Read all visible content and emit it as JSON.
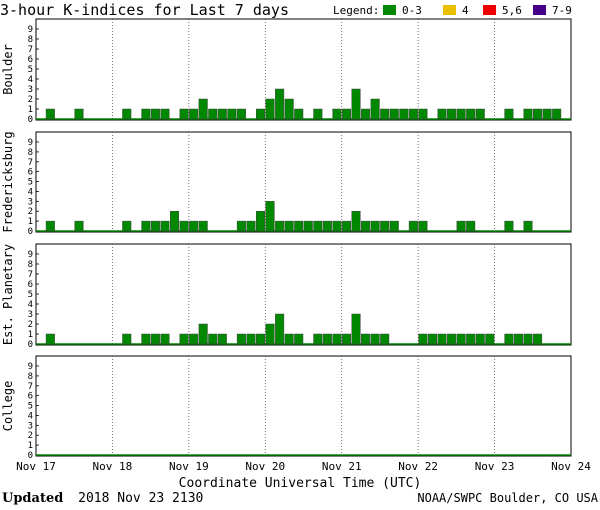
{
  "chart_data": {
    "type": "bar",
    "title": "3-hour K-indices for Last 7 days",
    "legend": {
      "label": "Legend:",
      "items": [
        {
          "label": "0-3",
          "color": "#008800"
        },
        {
          "label": "4",
          "color": "#e8c000"
        },
        {
          "label": "5,6",
          "color": "#ee0000"
        },
        {
          "label": "7-9",
          "color": "#440088"
        }
      ]
    },
    "xlabel": "Coordinate Universal Time (UTC)",
    "x_ticks": [
      "Nov 17",
      "Nov 18",
      "Nov 19",
      "Nov 20",
      "Nov 21",
      "Nov 22",
      "Nov 23",
      "Nov 24"
    ],
    "ylim": [
      0,
      9
    ],
    "y_ticks": [
      "0",
      "1",
      "2",
      "3",
      "4",
      "5",
      "6",
      "7",
      "8",
      "9"
    ],
    "grid": true,
    "bar_color": "#008800",
    "series": [
      {
        "name": "Boulder",
        "values": [
          0,
          1,
          0,
          0,
          1,
          0,
          0,
          0,
          0,
          1,
          0,
          1,
          1,
          1,
          0,
          1,
          1,
          2,
          1,
          1,
          1,
          1,
          0,
          1,
          2,
          3,
          2,
          1,
          0,
          1,
          0,
          1,
          1,
          3,
          1,
          2,
          1,
          1,
          1,
          1,
          1,
          0,
          1,
          1,
          1,
          1,
          1,
          0,
          0,
          1,
          0,
          1,
          1,
          1,
          1,
          0
        ]
      },
      {
        "name": "Fredericksburg",
        "values": [
          0,
          1,
          0,
          0,
          1,
          0,
          0,
          0,
          0,
          1,
          0,
          1,
          1,
          1,
          2,
          1,
          1,
          1,
          0,
          0,
          0,
          1,
          1,
          2,
          3,
          1,
          1,
          1,
          1,
          1,
          1,
          1,
          1,
          2,
          1,
          1,
          1,
          1,
          0,
          1,
          1,
          0,
          0,
          0,
          1,
          1,
          0,
          0,
          0,
          1,
          0,
          1,
          0,
          0,
          0,
          0
        ]
      },
      {
        "name": "Est. Planetary",
        "values": [
          0,
          1,
          0,
          0,
          0,
          0,
          0,
          0,
          0,
          1,
          0,
          1,
          1,
          1,
          0,
          1,
          1,
          2,
          1,
          1,
          0,
          1,
          1,
          1,
          2,
          3,
          1,
          1,
          0,
          1,
          1,
          1,
          1,
          3,
          1,
          1,
          1,
          0,
          0,
          0,
          1,
          1,
          1,
          1,
          1,
          1,
          1,
          1,
          0,
          1,
          1,
          1,
          1,
          0,
          0,
          0
        ]
      },
      {
        "name": "College",
        "values": [
          0,
          0,
          0,
          0,
          0,
          0,
          0,
          0,
          0,
          0,
          0,
          0,
          0,
          0,
          0,
          0,
          0,
          0,
          0,
          0,
          0,
          0,
          0,
          0,
          0,
          0,
          0,
          0,
          0,
          0,
          0,
          0,
          0,
          0,
          0,
          0,
          0,
          0,
          0,
          0,
          0,
          0,
          0,
          0,
          0,
          0,
          0,
          0,
          0,
          0,
          0,
          0,
          0,
          0,
          0,
          0
        ]
      }
    ]
  },
  "footer": {
    "updated_label": "Updated",
    "updated_value": "2018 Nov 23 2130",
    "source": "NOAA/SWPC Boulder, CO USA"
  }
}
